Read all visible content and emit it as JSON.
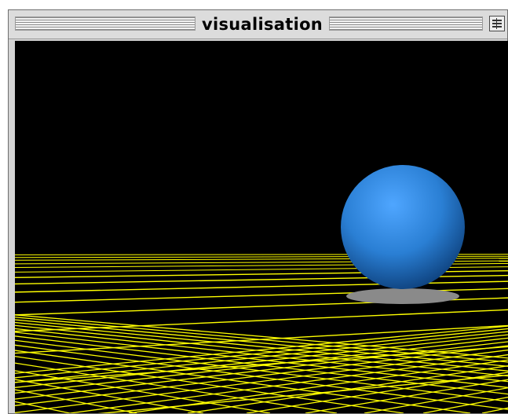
{
  "window": {
    "title": "visualisation"
  },
  "scene": {
    "background_color": "#000000",
    "grid_color": "#ffff00",
    "sphere_color": "#2a7fd4",
    "shadow_color": "#8a8a8a"
  }
}
